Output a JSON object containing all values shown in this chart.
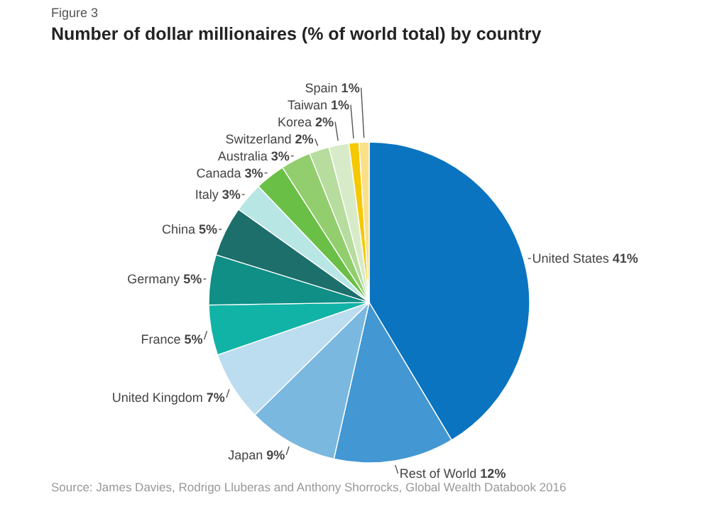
{
  "chart_data": {
    "type": "pie",
    "subtitle": "Figure 3",
    "title": "Number of dollar millionaires (% of world total) by country",
    "categories": [
      "United States",
      "Rest of World",
      "Japan",
      "United Kingdom",
      "France",
      "Germany",
      "China",
      "Italy",
      "Canada",
      "Australia",
      "Switzerland",
      "Korea",
      "Taiwan",
      "Spain"
    ],
    "values": [
      41,
      12,
      9,
      7,
      5,
      5,
      5,
      3,
      3,
      3,
      2,
      2,
      1,
      1
    ],
    "value_labels": [
      "41%",
      "12%",
      "9%",
      "7%",
      "5%",
      "5%",
      "5%",
      "3%",
      "3%",
      "3%",
      "2%",
      "2%",
      "1%",
      "1%"
    ],
    "colors": [
      "#0a74c0",
      "#4397d2",
      "#7ab8e0",
      "#bcdcef",
      "#11b3a6",
      "#0f8f86",
      "#1c6f6a",
      "#b8e6e4",
      "#6abf46",
      "#92cd6e",
      "#b6dc9e",
      "#d8ebc9",
      "#f5c800",
      "#fbe08a"
    ],
    "annotations": [
      "Source: James Davies, Rodrigo Lluberas and Anthony Shorrocks, Global Wealth Databook 2016"
    ]
  }
}
